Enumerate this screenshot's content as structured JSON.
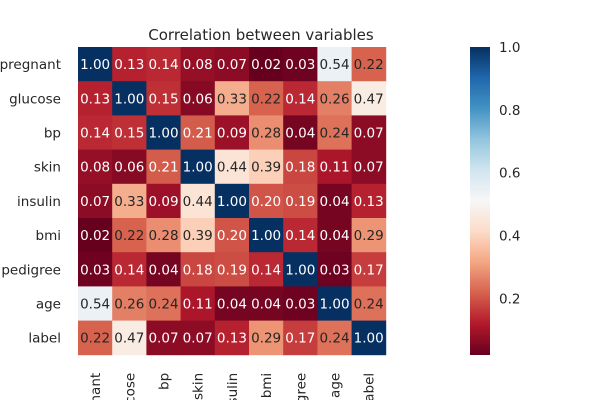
{
  "chart_data": {
    "type": "heatmap",
    "title": "Correlation between variables",
    "x_labels": [
      "nant",
      "cose",
      "bp",
      "skin",
      "sulin",
      "bmi",
      "gree",
      "age",
      "abel"
    ],
    "y_labels": [
      "pregnant",
      "glucose",
      "bp",
      "skin",
      "insulin",
      "bmi",
      "pedigree",
      "age",
      "label"
    ],
    "values": [
      [
        1.0,
        0.13,
        0.14,
        0.08,
        0.07,
        0.02,
        0.03,
        0.54,
        0.22
      ],
      [
        0.13,
        1.0,
        0.15,
        0.06,
        0.33,
        0.22,
        0.14,
        0.26,
        0.47
      ],
      [
        0.14,
        0.15,
        1.0,
        0.21,
        0.09,
        0.28,
        0.04,
        0.24,
        0.07
      ],
      [
        0.08,
        0.06,
        0.21,
        1.0,
        0.44,
        0.39,
        0.18,
        0.11,
        0.07
      ],
      [
        0.07,
        0.33,
        0.09,
        0.44,
        1.0,
        0.2,
        0.19,
        0.04,
        0.13
      ],
      [
        0.02,
        0.22,
        0.28,
        0.39,
        0.2,
        1.0,
        0.14,
        0.04,
        0.29
      ],
      [
        0.03,
        0.14,
        0.04,
        0.18,
        0.19,
        0.14,
        1.0,
        0.03,
        0.17
      ],
      [
        0.54,
        0.26,
        0.24,
        0.11,
        0.04,
        0.04,
        0.03,
        1.0,
        0.24
      ],
      [
        0.22,
        0.47,
        0.07,
        0.07,
        0.13,
        0.29,
        0.17,
        0.24,
        1.0
      ]
    ],
    "value_range": [
      0.02,
      1.0
    ],
    "colorbar_ticks": [
      "0.2",
      "0.4",
      "0.6",
      "0.8",
      "1.0"
    ],
    "colormap": [
      "#67001f",
      "#b2182b",
      "#d6604d",
      "#f4a582",
      "#fddbc7",
      "#f7f7f7",
      "#d1e5f0",
      "#92c5de",
      "#4393c3",
      "#2166ac",
      "#053061"
    ],
    "annotations": true,
    "grid": false
  }
}
